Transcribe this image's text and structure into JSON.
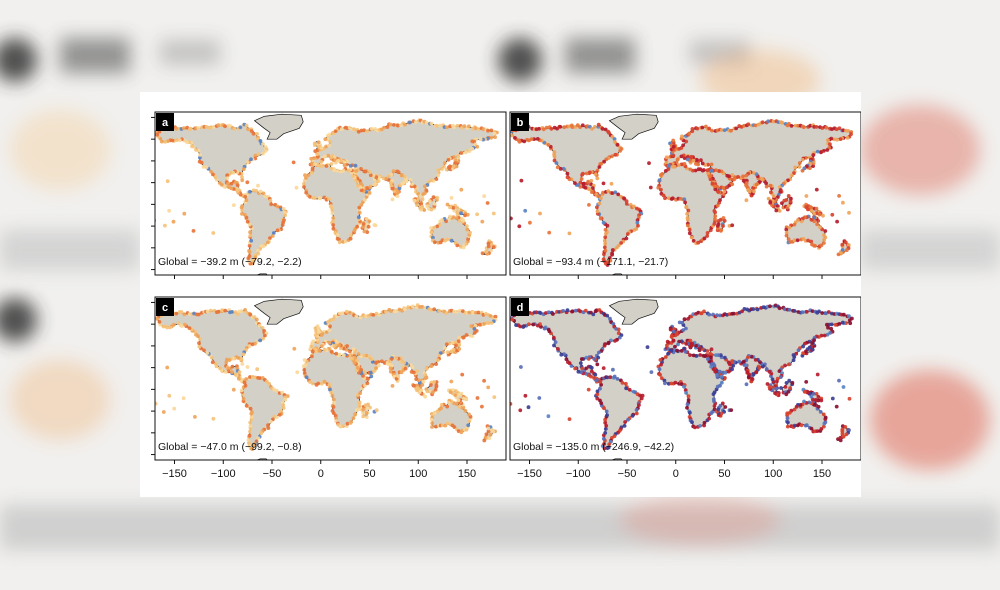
{
  "figure": {
    "panels": [
      {
        "id": "a",
        "label": "a",
        "global_text": "Global = −39.2 m (−79.2, −2.2)",
        "scheme": "light"
      },
      {
        "id": "b",
        "label": "b",
        "global_text": "Global = −93.4 m (−171.1, −21.7)",
        "scheme": "mixed"
      },
      {
        "id": "c",
        "label": "c",
        "global_text": "Global = −47.0 m (−99.2, −0.8)",
        "scheme": "light"
      },
      {
        "id": "d",
        "label": "d",
        "global_text": "Global = −135.0 m (−246.9, −42.2)",
        "scheme": "dark"
      }
    ],
    "x_axis": {
      "ticks": [
        -150,
        -100,
        -50,
        0,
        50,
        100,
        150
      ],
      "tick_labels": [
        "−150",
        "−100",
        "−50",
        "0",
        "50",
        "100",
        "150"
      ],
      "range": [
        -170,
        190
      ]
    },
    "y_axis": {
      "range": [
        -65,
        85
      ],
      "ticks": [
        80,
        60,
        40,
        20,
        0,
        -20,
        -40,
        -60
      ],
      "tick_labels_visible": false
    },
    "colors": {
      "land": "#d3d0c7",
      "coast_outline": "#111111",
      "marker_light": [
        "#f6c27a",
        "#f0a45a",
        "#e8743b",
        "#fbd89a"
      ],
      "marker_mid": [
        "#e8743b",
        "#d9432e",
        "#f0a45a",
        "#b81d2e"
      ],
      "marker_dark": [
        "#b81d2e",
        "#8c1030",
        "#d9432e",
        "#3b3f95",
        "#5a6fb8"
      ],
      "marker_blue": "#5b84c4",
      "panel_label_bg": "#000000"
    }
  }
}
